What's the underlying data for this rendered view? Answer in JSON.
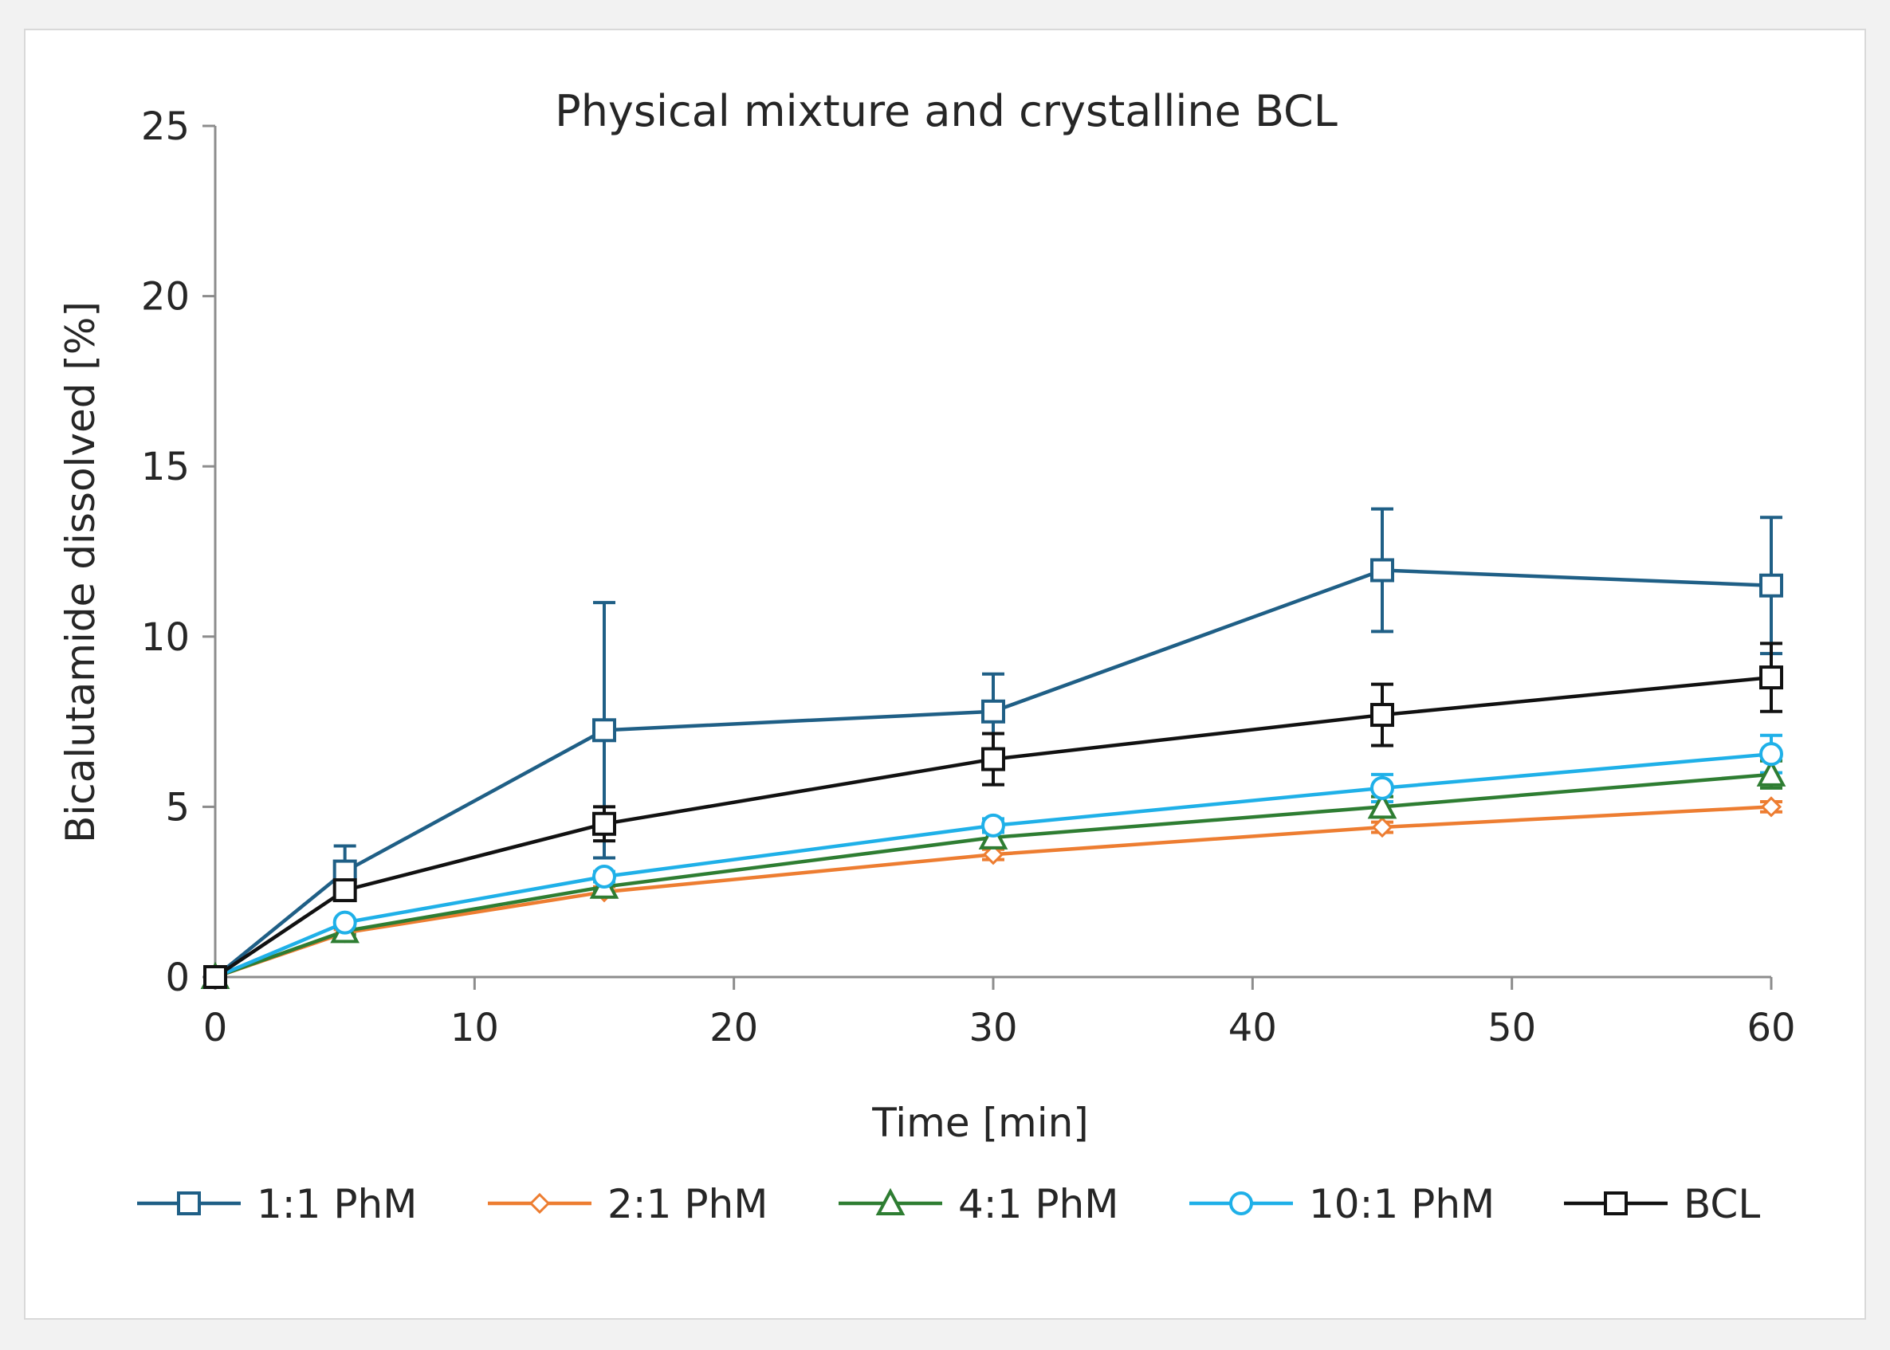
{
  "chart_data": {
    "type": "line",
    "title": "Physical mixture and crystalline BCL",
    "xlabel": "Time [min]",
    "ylabel": "Bicalutamide dissolved [%]",
    "xlim": [
      0,
      60
    ],
    "ylim": [
      0,
      25
    ],
    "xticks": [
      0,
      10,
      20,
      30,
      40,
      50,
      60
    ],
    "yticks": [
      0,
      5,
      10,
      15,
      20,
      25
    ],
    "grid": false,
    "legend_position": "bottom",
    "x": [
      0,
      5,
      15,
      30,
      45,
      60
    ],
    "series": [
      {
        "name": "1:1 PhM",
        "color": "#1f5f86",
        "marker": "square",
        "values": [
          0,
          3.1,
          7.25,
          7.8,
          11.95,
          11.5
        ],
        "errors": [
          0,
          0.75,
          3.75,
          1.1,
          1.8,
          2.0
        ]
      },
      {
        "name": "2:1 PhM",
        "color": "#ed7d31",
        "marker": "diamond",
        "values": [
          0,
          1.3,
          2.5,
          3.6,
          4.4,
          5.0
        ],
        "errors": [
          0,
          0.1,
          0.15,
          0.15,
          0.15,
          0.15
        ]
      },
      {
        "name": "4:1 PhM",
        "color": "#2e7d32",
        "marker": "triangle",
        "values": [
          0,
          1.35,
          2.65,
          4.1,
          5.0,
          5.95
        ],
        "errors": [
          0,
          0.1,
          0.15,
          0.2,
          0.3,
          0.4
        ]
      },
      {
        "name": "10:1 PhM",
        "color": "#1fb0e8",
        "marker": "circle",
        "values": [
          0,
          1.6,
          2.95,
          4.45,
          5.55,
          6.55
        ],
        "errors": [
          0,
          0.1,
          0.15,
          0.2,
          0.4,
          0.55
        ]
      },
      {
        "name": "BCL",
        "color": "#111111",
        "marker": "square",
        "values": [
          0,
          2.55,
          4.5,
          6.4,
          7.7,
          8.8
        ],
        "errors": [
          0,
          0.25,
          0.5,
          0.75,
          0.9,
          1.0
        ]
      }
    ]
  }
}
